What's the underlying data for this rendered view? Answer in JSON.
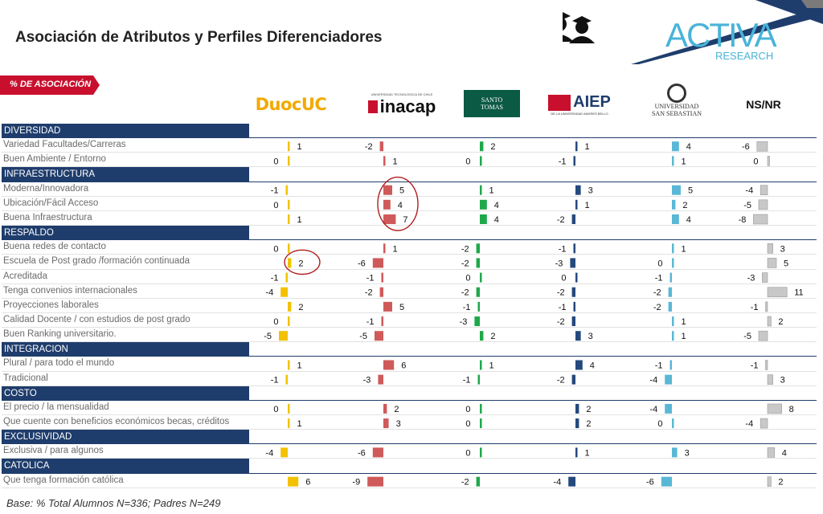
{
  "title": "Asociación de Atributos y Perfiles Diferenciadores",
  "tag_label": "% DE ASOCIACIÓN",
  "brand": {
    "word1": "ACTIVA",
    "word2": "RESEARCH"
  },
  "logos": {
    "duoc": "DuocUC",
    "inacap_small": "UNIVERSIDAD TECNOLÓGICA DE CHILE",
    "inacap": "inacap",
    "santo_tomas": "SANTO TOMAS",
    "aiep": "AIEP",
    "aiep_small": "DE LA UNIVERSIDAD ANDRES BELLO",
    "uss_1": "UNIVERSIDAD",
    "uss_2": "SAN SEBASTIAN",
    "nsnr": "NS/NR"
  },
  "footer": "Base: % Total Alumnos  N=336;  Padres N=249",
  "colors": {
    "section_bg": "#1f3d6c",
    "tag_red": "#c8102e",
    "duoc": "#f2c200",
    "inacap": "#cf5a5a",
    "santo_tomas": "#1ea84a",
    "aiep": "#24497d",
    "uss": "#5ab7d6",
    "nsnr": "#c8c8c8"
  },
  "chart_data": {
    "type": "bar",
    "series": [
      {
        "name": "DuocUC",
        "color": "#f2c200"
      },
      {
        "name": "inacap",
        "color": "#cf5a5a"
      },
      {
        "name": "SANTO TOMAS",
        "color": "#1ea84a"
      },
      {
        "name": "AIEP",
        "color": "#24497d"
      },
      {
        "name": "UNIVERSIDAD SAN SEBASTIAN",
        "color": "#5ab7d6"
      },
      {
        "name": "NS/NR",
        "color": "#c8c8c8"
      }
    ],
    "rows": [
      {
        "kind": "section",
        "label": "DIVERSIDAD"
      },
      {
        "kind": "row",
        "label": "Variedad Facultades/Carreras",
        "values": [
          1,
          -2,
          2,
          1,
          4,
          -6
        ]
      },
      {
        "kind": "row",
        "label": "Buen Ambiente / Entorno",
        "values": [
          0,
          1,
          0,
          -1,
          1,
          0
        ]
      },
      {
        "kind": "section",
        "label": "INFRAESTRUCTURA"
      },
      {
        "kind": "row",
        "label": "Moderna/Innovadora",
        "values": [
          -1,
          5,
          1,
          3,
          5,
          -4
        ]
      },
      {
        "kind": "row",
        "label": "Ubicación/Fácil Acceso",
        "values": [
          0,
          4,
          4,
          1,
          2,
          -5
        ]
      },
      {
        "kind": "row",
        "label": "Buena Infraestructura",
        "values": [
          1,
          7,
          4,
          -2,
          4,
          -8
        ]
      },
      {
        "kind": "section",
        "label": "RESPALDO"
      },
      {
        "kind": "row",
        "label": "Buena redes de contacto",
        "values": [
          0,
          1,
          -2,
          -1,
          1,
          3
        ]
      },
      {
        "kind": "row",
        "label": "Escuela de Post grado /formación continuada",
        "values": [
          2,
          -6,
          -2,
          -3,
          0,
          5
        ]
      },
      {
        "kind": "row",
        "label": "Acreditada",
        "values": [
          -1,
          -1,
          0,
          0,
          -1,
          -3
        ]
      },
      {
        "kind": "row",
        "label": "Tenga convenios internacionales",
        "values": [
          -4,
          -2,
          -2,
          -2,
          -2,
          11
        ]
      },
      {
        "kind": "row",
        "label": "Proyecciones laborales",
        "values": [
          2,
          5,
          -1,
          -1,
          -2,
          -1
        ]
      },
      {
        "kind": "row",
        "label": "Calidad Docente / con estudios de post grado",
        "values": [
          0,
          -1,
          -3,
          -2,
          1,
          2
        ]
      },
      {
        "kind": "row",
        "label": "Buen Ranking universitario.",
        "values": [
          -5,
          -5,
          2,
          3,
          1,
          -5
        ]
      },
      {
        "kind": "section",
        "label": "INTEGRACION"
      },
      {
        "kind": "row",
        "label": "Plural / para todo el mundo",
        "values": [
          1,
          6,
          1,
          4,
          -1,
          -1
        ]
      },
      {
        "kind": "row",
        "label": "Tradicional",
        "values": [
          -1,
          -3,
          -1,
          -2,
          -4,
          3
        ]
      },
      {
        "kind": "section",
        "label": "COSTO"
      },
      {
        "kind": "row",
        "label": "El precio / la mensualidad",
        "values": [
          0,
          2,
          0,
          2,
          -4,
          8
        ]
      },
      {
        "kind": "row",
        "label": "Que cuente con beneficios económicos becas, créditos",
        "values": [
          1,
          3,
          0,
          2,
          0,
          -4
        ]
      },
      {
        "kind": "section",
        "label": "EXCLUSIVIDAD"
      },
      {
        "kind": "row",
        "label": "Exclusiva / para algunos",
        "values": [
          -4,
          -6,
          0,
          1,
          3,
          4
        ]
      },
      {
        "kind": "section",
        "label": "CATOLICA"
      },
      {
        "kind": "row",
        "label": "Que tenga formación católica",
        "values": [
          6,
          -9,
          -2,
          -4,
          -6,
          2
        ]
      }
    ],
    "highlighted": [
      {
        "row": "Moderna/Innovadora",
        "series": "inacap"
      },
      {
        "row": "Ubicación/Fácil Acceso",
        "series": "inacap"
      },
      {
        "row": "Buena Infraestructura",
        "series": "inacap"
      },
      {
        "row": "Escuela de Post grado /formación continuada",
        "series": "DuocUC"
      }
    ]
  }
}
